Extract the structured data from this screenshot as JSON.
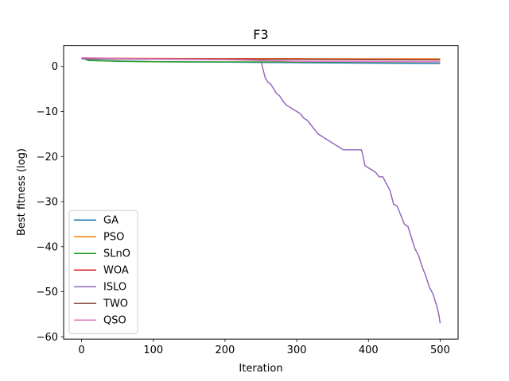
{
  "chart_data": {
    "type": "line",
    "title": "F3",
    "xlabel": "Iteration",
    "ylabel": "Best fitness (log)",
    "xlim": [
      -25,
      525
    ],
    "ylim": [
      -60.5,
      4.6
    ],
    "xticks": [
      0,
      100,
      200,
      300,
      400,
      500
    ],
    "yticks": [
      0,
      -10,
      -20,
      -30,
      -40,
      -50,
      -60
    ],
    "grid": false,
    "legend_position": "lower-left",
    "series": [
      {
        "name": "GA",
        "color": "#1f77b4",
        "x": [
          0,
          10,
          50,
          100,
          150,
          200,
          250,
          300,
          350,
          400,
          450,
          500
        ],
        "y": [
          1.9,
          1.4,
          1.2,
          1.05,
          1.0,
          0.95,
          0.9,
          0.85,
          0.8,
          0.75,
          0.7,
          0.65
        ]
      },
      {
        "name": "PSO",
        "color": "#ff7f0e",
        "x": [
          0,
          10,
          50,
          100,
          200,
          300,
          400,
          500
        ],
        "y": [
          1.9,
          1.85,
          1.8,
          1.8,
          1.75,
          1.75,
          1.7,
          1.7
        ]
      },
      {
        "name": "SLnO",
        "color": "#2ca02c",
        "x": [
          0,
          10,
          50,
          100,
          150,
          200,
          250,
          300,
          400,
          500
        ],
        "y": [
          1.85,
          1.3,
          1.15,
          1.05,
          1.0,
          1.0,
          1.0,
          1.0,
          1.0,
          1.0
        ]
      },
      {
        "name": "WOA",
        "color": "#d62728",
        "x": [
          0,
          10,
          50,
          100,
          200,
          300,
          400,
          500
        ],
        "y": [
          1.9,
          1.85,
          1.8,
          1.75,
          1.7,
          1.65,
          1.6,
          1.55
        ]
      },
      {
        "name": "ISLO",
        "color": "#9467bd",
        "x": [
          0,
          100,
          200,
          250,
          252,
          256,
          260,
          264,
          268,
          272,
          276,
          280,
          285,
          290,
          295,
          300,
          305,
          310,
          315,
          320,
          325,
          330,
          335,
          340,
          345,
          350,
          355,
          360,
          365,
          370,
          375,
          380,
          385,
          390,
          392,
          395,
          400,
          405,
          410,
          415,
          420,
          425,
          430,
          435,
          440,
          445,
          450,
          455,
          460,
          465,
          470,
          475,
          480,
          485,
          490,
          495,
          498,
          500
        ],
        "y": [
          1.7,
          1.6,
          1.5,
          1.5,
          0.0,
          -2.5,
          -3.5,
          -4.0,
          -5.0,
          -6.0,
          -6.5,
          -7.5,
          -8.5,
          -9.0,
          -9.5,
          -10.0,
          -10.5,
          -11.5,
          -12.0,
          -13.0,
          -14.0,
          -15.0,
          -15.5,
          -16.0,
          -16.5,
          -17.0,
          -17.5,
          -18.0,
          -18.5,
          -18.5,
          -18.5,
          -18.5,
          -18.5,
          -18.5,
          -19.5,
          -22.0,
          -22.5,
          -23.0,
          -23.5,
          -24.5,
          -24.5,
          -26.0,
          -27.5,
          -30.5,
          -31.0,
          -33.0,
          -35.0,
          -35.5,
          -38.0,
          -40.5,
          -42.0,
          -44.5,
          -46.5,
          -49.0,
          -50.5,
          -53.0,
          -55.0,
          -57.0
        ]
      },
      {
        "name": "TWO",
        "color": "#8c564b",
        "x": [
          0,
          10,
          50,
          100,
          200,
          300,
          400,
          500
        ],
        "y": [
          1.9,
          1.75,
          1.7,
          1.65,
          1.6,
          1.55,
          1.5,
          1.45
        ]
      },
      {
        "name": "QSO",
        "color": "#e377c2",
        "x": [
          0,
          10,
          50,
          100,
          200,
          250,
          300,
          400,
          500
        ],
        "y": [
          1.95,
          1.9,
          1.8,
          1.7,
          1.5,
          1.3,
          1.15,
          1.1,
          1.05
        ]
      }
    ]
  }
}
